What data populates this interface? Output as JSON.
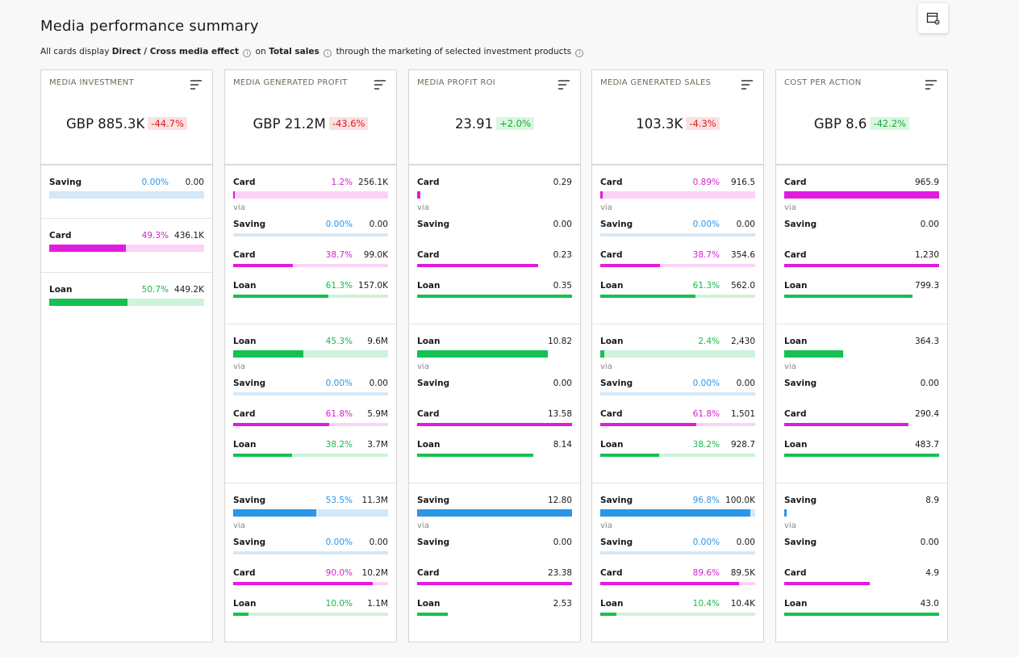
{
  "page": {
    "title": "Media performance summary",
    "subtitle": {
      "prefix": "All cards display",
      "effect": "Direct / Cross media effect",
      "on": "on",
      "metric": "Total sales",
      "suffix": "through the marketing of selected investment products"
    },
    "settings_icon": "calendar-settings-icon"
  },
  "cards": [
    {
      "label": "MEDIA INVESTMENT",
      "kpi": "GBP 885.3K",
      "change": "-44.7%",
      "change_dir": "neg",
      "sections": [
        {
          "main": {
            "label": "Saving",
            "type": "saving",
            "pct": "0.00%",
            "val": "0.00",
            "frac": 0.0,
            "track": true
          }
        },
        {
          "main": {
            "label": "Card",
            "type": "card",
            "pct": "49.3%",
            "val": "436.1K",
            "frac": 0.493,
            "track": true
          }
        },
        {
          "main": {
            "label": "Loan",
            "type": "loan",
            "pct": "50.7%",
            "val": "449.2K",
            "frac": 0.507,
            "track": true
          }
        }
      ]
    },
    {
      "label": "MEDIA GENERATED PROFIT",
      "kpi": "GBP 21.2M",
      "change": "-43.6%",
      "change_dir": "neg",
      "sections": [
        {
          "main": {
            "label": "Card",
            "type": "card",
            "pct": "1.2%",
            "val": "256.1K",
            "frac": 0.012,
            "track": true
          },
          "via": "via",
          "subs": [
            {
              "label": "Saving",
              "type": "saving",
              "pct": "0.00%",
              "val": "0.00",
              "frac": 0.0,
              "track": true
            },
            {
              "label": "Card",
              "type": "card",
              "pct": "38.7%",
              "val": "99.0K",
              "frac": 0.387,
              "track": true
            },
            {
              "label": "Loan",
              "type": "loan",
              "pct": "61.3%",
              "val": "157.0K",
              "frac": 0.613,
              "track": true
            }
          ]
        },
        {
          "main": {
            "label": "Loan",
            "type": "loan",
            "pct": "45.3%",
            "val": "9.6M",
            "frac": 0.453,
            "track": true
          },
          "via": "via",
          "subs": [
            {
              "label": "Saving",
              "type": "saving",
              "pct": "0.00%",
              "val": "0.00",
              "frac": 0.0,
              "track": true
            },
            {
              "label": "Card",
              "type": "card",
              "pct": "61.8%",
              "val": "5.9M",
              "frac": 0.618,
              "track": true
            },
            {
              "label": "Loan",
              "type": "loan",
              "pct": "38.2%",
              "val": "3.7M",
              "frac": 0.382,
              "track": true
            }
          ]
        },
        {
          "main": {
            "label": "Saving",
            "type": "saving",
            "pct": "53.5%",
            "val": "11.3M",
            "frac": 0.535,
            "track": true
          },
          "via": "via",
          "subs": [
            {
              "label": "Saving",
              "type": "saving",
              "pct": "0.00%",
              "val": "0.00",
              "frac": 0.0,
              "track": true
            },
            {
              "label": "Card",
              "type": "card",
              "pct": "90.0%",
              "val": "10.2M",
              "frac": 0.9,
              "track": true
            },
            {
              "label": "Loan",
              "type": "loan",
              "pct": "10.0%",
              "val": "1.1M",
              "frac": 0.1,
              "track": true
            }
          ]
        }
      ]
    },
    {
      "label": "MEDIA PROFIT ROI",
      "kpi": "23.91",
      "change": "+2.0%",
      "change_dir": "pos",
      "sections": [
        {
          "main": {
            "label": "Card",
            "type": "card",
            "pct": "",
            "val": "0.29",
            "frac": 0.02,
            "track": false
          },
          "via": "via",
          "subs": [
            {
              "label": "Saving",
              "type": "saving",
              "pct": "",
              "val": "0.00",
              "frac": 0.0,
              "track": false
            },
            {
              "label": "Card",
              "type": "card",
              "pct": "",
              "val": "0.23",
              "frac": 0.78,
              "track": false
            },
            {
              "label": "Loan",
              "type": "loan",
              "pct": "",
              "val": "0.35",
              "frac": 1.0,
              "track": false
            }
          ]
        },
        {
          "main": {
            "label": "Loan",
            "type": "loan",
            "pct": "",
            "val": "10.82",
            "frac": 0.845,
            "track": false
          },
          "via": "via",
          "subs": [
            {
              "label": "Saving",
              "type": "saving",
              "pct": "",
              "val": "0.00",
              "frac": 0.0,
              "track": false
            },
            {
              "label": "Card",
              "type": "card",
              "pct": "",
              "val": "13.58",
              "frac": 1.0,
              "track": false
            },
            {
              "label": "Loan",
              "type": "loan",
              "pct": "",
              "val": "8.14",
              "frac": 0.75,
              "track": false
            }
          ]
        },
        {
          "main": {
            "label": "Saving",
            "type": "saving",
            "pct": "",
            "val": "12.80",
            "frac": 1.0,
            "track": false
          },
          "via": "via",
          "subs": [
            {
              "label": "Saving",
              "type": "saving",
              "pct": "",
              "val": "0.00",
              "frac": 0.0,
              "track": false
            },
            {
              "label": "Card",
              "type": "card",
              "pct": "",
              "val": "23.38",
              "frac": 1.0,
              "track": false
            },
            {
              "label": "Loan",
              "type": "loan",
              "pct": "",
              "val": "2.53",
              "frac": 0.2,
              "track": false
            }
          ]
        }
      ]
    },
    {
      "label": "MEDIA GENERATED SALES",
      "kpi": "103.3K",
      "change": "-4.3%",
      "change_dir": "neg",
      "sections": [
        {
          "main": {
            "label": "Card",
            "type": "card",
            "pct": "0.89%",
            "val": "916.5",
            "frac": 0.009,
            "track": true
          },
          "via": "via",
          "subs": [
            {
              "label": "Saving",
              "type": "saving",
              "pct": "0.00%",
              "val": "0.00",
              "frac": 0.0,
              "track": true
            },
            {
              "label": "Card",
              "type": "card",
              "pct": "38.7%",
              "val": "354.6",
              "frac": 0.387,
              "track": true
            },
            {
              "label": "Loan",
              "type": "loan",
              "pct": "61.3%",
              "val": "562.0",
              "frac": 0.613,
              "track": true
            }
          ]
        },
        {
          "main": {
            "label": "Loan",
            "type": "loan",
            "pct": "2.4%",
            "val": "2,430",
            "frac": 0.024,
            "track": true
          },
          "via": "via",
          "subs": [
            {
              "label": "Saving",
              "type": "saving",
              "pct": "0.00%",
              "val": "0.00",
              "frac": 0.0,
              "track": true
            },
            {
              "label": "Card",
              "type": "card",
              "pct": "61.8%",
              "val": "1,501",
              "frac": 0.618,
              "track": true
            },
            {
              "label": "Loan",
              "type": "loan",
              "pct": "38.2%",
              "val": "928.7",
              "frac": 0.382,
              "track": true
            }
          ]
        },
        {
          "main": {
            "label": "Saving",
            "type": "saving",
            "pct": "96.8%",
            "val": "100.0K",
            "frac": 0.968,
            "track": true
          },
          "via": "via",
          "subs": [
            {
              "label": "Saving",
              "type": "saving",
              "pct": "0.00%",
              "val": "0.00",
              "frac": 0.0,
              "track": true
            },
            {
              "label": "Card",
              "type": "card",
              "pct": "89.6%",
              "val": "89.5K",
              "frac": 0.896,
              "track": true
            },
            {
              "label": "Loan",
              "type": "loan",
              "pct": "10.4%",
              "val": "10.4K",
              "frac": 0.104,
              "track": true
            }
          ]
        }
      ]
    },
    {
      "label": "COST PER ACTION",
      "kpi": "GBP 8.6",
      "change": "-42.2%",
      "change_dir": "pos",
      "sections": [
        {
          "main": {
            "label": "Card",
            "type": "card",
            "pct": "",
            "val": "965.9",
            "frac": 1.0,
            "track": false
          },
          "via": "via",
          "subs": [
            {
              "label": "Saving",
              "type": "saving",
              "pct": "",
              "val": "0.00",
              "frac": 0.0,
              "track": false
            },
            {
              "label": "Card",
              "type": "card",
              "pct": "",
              "val": "1,230",
              "frac": 1.0,
              "track": false
            },
            {
              "label": "Loan",
              "type": "loan",
              "pct": "",
              "val": "799.3",
              "frac": 0.83,
              "track": false
            }
          ]
        },
        {
          "main": {
            "label": "Loan",
            "type": "loan",
            "pct": "",
            "val": "364.3",
            "frac": 0.38,
            "track": false
          },
          "via": "via",
          "subs": [
            {
              "label": "Saving",
              "type": "saving",
              "pct": "",
              "val": "0.00",
              "frac": 0.0,
              "track": false
            },
            {
              "label": "Card",
              "type": "card",
              "pct": "",
              "val": "290.4",
              "frac": 0.8,
              "track": false
            },
            {
              "label": "Loan",
              "type": "loan",
              "pct": "",
              "val": "483.7",
              "frac": 1.0,
              "track": false
            }
          ]
        },
        {
          "main": {
            "label": "Saving",
            "type": "saving",
            "pct": "",
            "val": "8.9",
            "frac": 0.01,
            "track": false
          },
          "via": "via",
          "subs": [
            {
              "label": "Saving",
              "type": "saving",
              "pct": "",
              "val": "0.00",
              "frac": 0.0,
              "track": false
            },
            {
              "label": "Card",
              "type": "card",
              "pct": "",
              "val": "4.9",
              "frac": 0.55,
              "track": false
            },
            {
              "label": "Loan",
              "type": "loan",
              "pct": "",
              "val": "43.0",
              "frac": 1.0,
              "track": false
            }
          ]
        }
      ]
    }
  ]
}
